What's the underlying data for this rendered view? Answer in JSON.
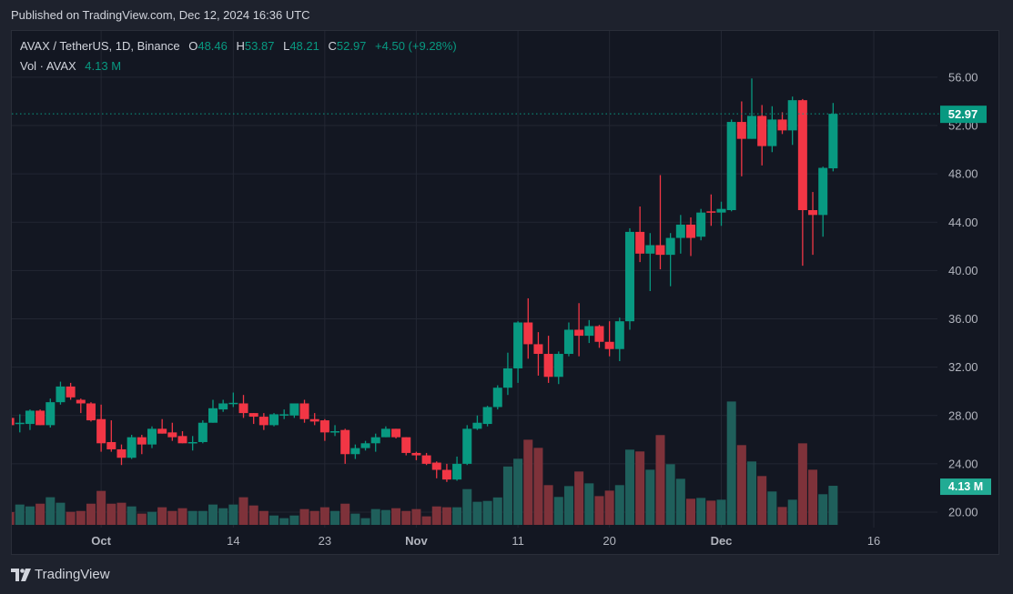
{
  "header": {
    "published": "Published on TradingView.com, Dec 12, 2024 16:36 UTC"
  },
  "legend": {
    "symbol": "AVAX / TetherUS, 1D, Binance",
    "o_label": "O",
    "o": "48.46",
    "h_label": "H",
    "h": "53.87",
    "l_label": "L",
    "l": "48.21",
    "c_label": "C",
    "c": "52.97",
    "change": "+4.50 (+9.28%)",
    "vol_label": "Vol · AVAX",
    "vol": "4.13 M"
  },
  "footer": {
    "brand": "TradingView"
  },
  "colors": {
    "up": "#089981",
    "down": "#f23645",
    "vol_up": "#1f5f5b",
    "vol_down": "#7e323a",
    "bg": "#131722",
    "grid": "#232733"
  },
  "chart_data": {
    "type": "candlestick",
    "title": "AVAX / TetherUS, 1D, Binance",
    "start_date": "2024-09-22",
    "interval": "1D",
    "ylim": [
      18.5,
      59
    ],
    "y_ticks": [
      "20.00",
      "24.00",
      "28.00",
      "32.00",
      "36.00",
      "40.00",
      "44.00",
      "48.00",
      "52.00",
      "56.00"
    ],
    "x_ticks": [
      {
        "label": "Oct",
        "date": "2024-10-01"
      },
      {
        "label": "14",
        "date": "2024-10-14"
      },
      {
        "label": "23",
        "date": "2024-10-23"
      },
      {
        "label": "Nov",
        "date": "2024-11-01"
      },
      {
        "label": "11",
        "date": "2024-11-11"
      },
      {
        "label": "20",
        "date": "2024-11-20"
      },
      {
        "label": "Dec",
        "date": "2024-12-01"
      },
      {
        "label": "16",
        "date": "2024-12-16"
      }
    ],
    "last_price_label": "52.97",
    "last_volume_label": "4.13 M",
    "ohlc": [
      [
        27.8,
        27.9,
        27.0,
        27.2
      ],
      [
        27.3,
        28.1,
        26.6,
        27.4
      ],
      [
        27.3,
        28.5,
        26.8,
        28.4
      ],
      [
        28.4,
        28.5,
        27.2,
        27.2
      ],
      [
        27.2,
        29.4,
        27.0,
        29.1
      ],
      [
        29.1,
        30.8,
        28.9,
        30.4
      ],
      [
        30.4,
        30.7,
        29.3,
        29.5
      ],
      [
        29.3,
        29.4,
        28.2,
        29.0
      ],
      [
        29.0,
        29.1,
        27.5,
        27.6
      ],
      [
        27.7,
        28.9,
        25.0,
        25.7
      ],
      [
        25.8,
        27.6,
        25.0,
        25.2
      ],
      [
        25.2,
        25.6,
        23.9,
        24.5
      ],
      [
        24.5,
        26.4,
        24.4,
        26.2
      ],
      [
        26.2,
        26.4,
        24.8,
        25.6
      ],
      [
        25.6,
        27.1,
        25.3,
        26.9
      ],
      [
        26.9,
        27.7,
        26.5,
        26.5
      ],
      [
        26.6,
        27.4,
        25.9,
        26.2
      ],
      [
        26.3,
        26.7,
        25.7,
        25.7
      ],
      [
        25.7,
        26.3,
        25.1,
        25.8
      ],
      [
        25.8,
        27.6,
        25.7,
        27.4
      ],
      [
        27.4,
        29.3,
        27.4,
        28.6
      ],
      [
        28.5,
        29.3,
        28.3,
        29.0
      ],
      [
        29.0,
        29.9,
        28.7,
        29.05
      ],
      [
        29.0,
        29.7,
        27.8,
        28.2
      ],
      [
        28.2,
        28.2,
        27.3,
        27.9
      ],
      [
        27.9,
        28.2,
        26.8,
        27.2
      ],
      [
        27.2,
        28.2,
        27.1,
        28.1
      ],
      [
        28.05,
        28.5,
        27.7,
        28.1
      ],
      [
        28.0,
        29.0,
        27.8,
        29.0
      ],
      [
        29.0,
        29.3,
        27.4,
        27.7
      ],
      [
        27.7,
        28.2,
        27.2,
        27.5
      ],
      [
        27.6,
        27.7,
        25.9,
        26.6
      ],
      [
        26.6,
        27.2,
        26.3,
        26.7
      ],
      [
        26.8,
        26.9,
        24.0,
        24.8
      ],
      [
        24.8,
        25.6,
        24.4,
        25.3
      ],
      [
        25.3,
        25.9,
        25.1,
        25.7
      ],
      [
        25.7,
        26.5,
        25.0,
        26.2
      ],
      [
        26.2,
        27.1,
        26.2,
        26.9
      ],
      [
        26.9,
        26.9,
        26.1,
        26.2
      ],
      [
        26.2,
        26.2,
        24.7,
        24.9
      ],
      [
        24.9,
        25.0,
        24.3,
        24.7
      ],
      [
        24.7,
        24.9,
        23.9,
        24.0
      ],
      [
        24.1,
        24.2,
        22.8,
        23.5
      ],
      [
        23.5,
        24.0,
        22.5,
        22.7
      ],
      [
        22.7,
        24.6,
        22.6,
        24.0
      ],
      [
        24.0,
        27.2,
        23.9,
        26.9
      ],
      [
        26.9,
        28.0,
        26.8,
        27.4
      ],
      [
        27.3,
        28.8,
        27.1,
        28.7
      ],
      [
        28.7,
        30.5,
        28.5,
        30.3
      ],
      [
        30.3,
        33.2,
        29.7,
        31.9
      ],
      [
        31.9,
        35.8,
        30.7,
        35.7
      ],
      [
        35.7,
        37.7,
        32.7,
        33.9
      ],
      [
        33.9,
        34.9,
        31.3,
        33.1
      ],
      [
        33.1,
        34.6,
        30.7,
        31.2
      ],
      [
        31.2,
        33.3,
        30.6,
        33.1
      ],
      [
        33.1,
        35.7,
        32.9,
        35.1
      ],
      [
        35.1,
        37.3,
        32.9,
        34.6
      ],
      [
        34.6,
        35.9,
        34.0,
        35.4
      ],
      [
        35.4,
        35.5,
        33.6,
        34.1
      ],
      [
        34.1,
        35.8,
        32.9,
        33.5
      ],
      [
        33.5,
        36.1,
        32.5,
        35.8
      ],
      [
        35.8,
        43.5,
        35.1,
        43.2
      ],
      [
        43.2,
        45.3,
        40.7,
        41.4
      ],
      [
        41.4,
        43.1,
        38.3,
        42.1
      ],
      [
        42.1,
        47.9,
        40.1,
        41.3
      ],
      [
        41.3,
        43.1,
        38.7,
        42.7
      ],
      [
        42.7,
        44.6,
        41.4,
        43.8
      ],
      [
        43.8,
        44.4,
        41.2,
        42.7
      ],
      [
        42.8,
        45.1,
        42.5,
        44.8
      ],
      [
        44.9,
        46.3,
        43.7,
        44.8
      ],
      [
        44.8,
        45.7,
        43.7,
        45.1
      ],
      [
        45.0,
        52.5,
        44.9,
        52.3
      ],
      [
        52.3,
        54.0,
        47.8,
        50.9
      ],
      [
        50.9,
        55.9,
        50.9,
        52.8
      ],
      [
        52.8,
        53.7,
        48.7,
        50.3
      ],
      [
        50.3,
        53.6,
        49.8,
        52.5
      ],
      [
        52.5,
        53.1,
        51.3,
        51.6
      ],
      [
        51.6,
        54.4,
        50.4,
        54.1
      ],
      [
        54.1,
        54.2,
        40.4,
        45.0
      ],
      [
        45.0,
        46.5,
        41.3,
        44.6
      ],
      [
        44.6,
        48.6,
        42.8,
        48.5
      ],
      [
        48.46,
        53.87,
        48.21,
        52.97
      ]
    ],
    "volume_millions": [
      1.35,
      2.15,
      1.95,
      2.24,
      2.92,
      2.34,
      1.38,
      1.47,
      2.24,
      3.59,
      2.24,
      2.34,
      1.95,
      1.19,
      1.38,
      1.86,
      1.47,
      1.76,
      1.47,
      1.47,
      2.15,
      1.76,
      2.15,
      2.92,
      2.05,
      1.47,
      0.99,
      0.71,
      0.99,
      1.67,
      1.47,
      1.86,
      1.47,
      2.24,
      1.19,
      0.71,
      1.67,
      1.57,
      1.76,
      1.47,
      1.67,
      0.9,
      1.95,
      1.86,
      1.86,
      3.78,
      2.44,
      2.53,
      2.9,
      6.17,
      6.99,
      9.0,
      8.14,
      4.2,
      2.95,
      4.1,
      5.64,
      4.39,
      3.04,
      3.62,
      4.2,
      7.95,
      7.76,
      5.83,
      9.49,
      6.41,
      4.87,
      2.76,
      2.85,
      2.56,
      2.66,
      13.04,
      8.43,
      6.7,
      5.16,
      3.53,
      1.89,
      2.66,
      8.62,
      5.83,
      3.24,
      4.13
    ]
  }
}
